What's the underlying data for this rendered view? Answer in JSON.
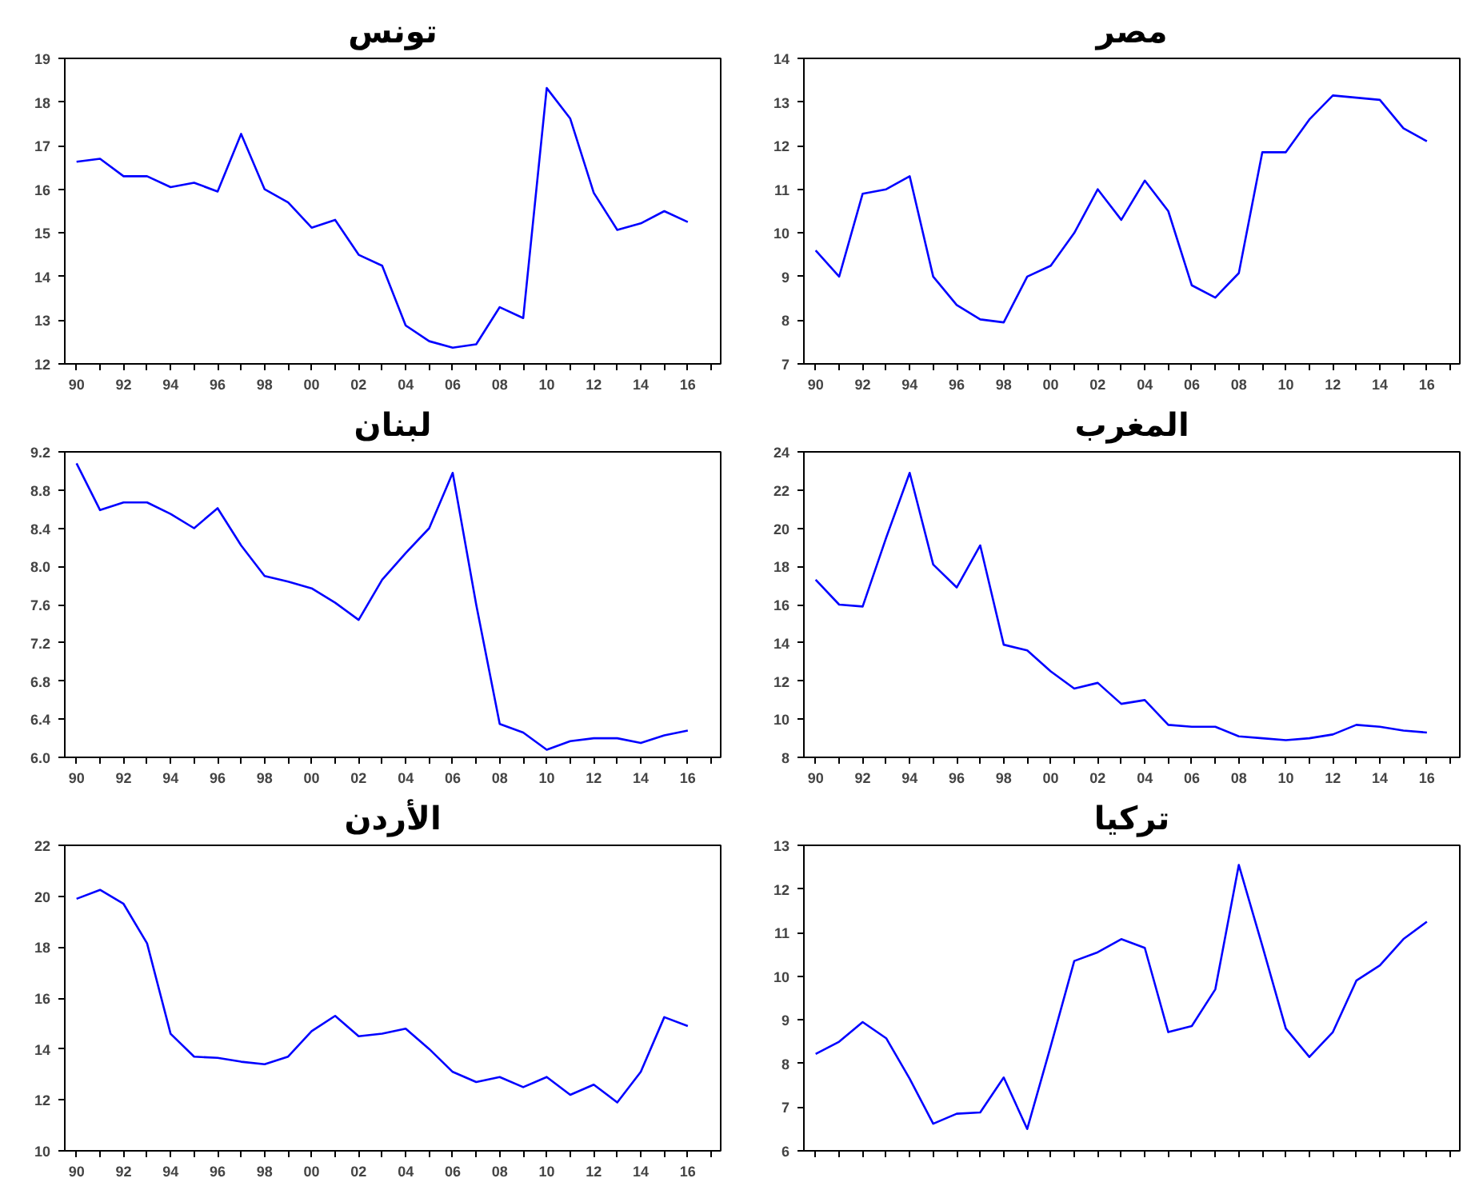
{
  "chart_data": [
    {
      "type": "line",
      "title": "تونس",
      "x": [
        1990,
        1991,
        1992,
        1993,
        1994,
        1995,
        1996,
        1997,
        1998,
        1999,
        2000,
        2001,
        2002,
        2003,
        2004,
        2005,
        2006,
        2007,
        2008,
        2009,
        2010,
        2011,
        2012,
        2013,
        2014,
        2015,
        2016
      ],
      "color": "#0000ff",
      "values": [
        16.63,
        16.7,
        16.3,
        16.3,
        16.05,
        16.15,
        15.95,
        17.27,
        16.0,
        15.7,
        15.12,
        15.3,
        14.5,
        14.25,
        12.88,
        12.52,
        12.37,
        12.45,
        13.3,
        13.05,
        18.32,
        17.62,
        15.92,
        15.07,
        15.22,
        15.5,
        15.25
      ],
      "xlim": [
        1989.5,
        2017.4
      ],
      "ylim": [
        12,
        19
      ],
      "yticks": [
        12,
        13,
        14,
        15,
        16,
        17,
        18,
        19
      ],
      "xticks": [
        {
          "value": 1990,
          "label": "90"
        },
        {
          "value": 1991,
          "label": null
        },
        {
          "value": 1992,
          "label": "92"
        },
        {
          "value": 1993,
          "label": null
        },
        {
          "value": 1994,
          "label": "94"
        },
        {
          "value": 1995,
          "label": null
        },
        {
          "value": 1996,
          "label": "96"
        },
        {
          "value": 1997,
          "label": null
        },
        {
          "value": 1998,
          "label": "98"
        },
        {
          "value": 1999,
          "label": null
        },
        {
          "value": 2000,
          "label": "00"
        },
        {
          "value": 2001,
          "label": null
        },
        {
          "value": 2002,
          "label": "02"
        },
        {
          "value": 2003,
          "label": null
        },
        {
          "value": 2004,
          "label": "04"
        },
        {
          "value": 2005,
          "label": null
        },
        {
          "value": 2006,
          "label": "06"
        },
        {
          "value": 2007,
          "label": null
        },
        {
          "value": 2008,
          "label": "08"
        },
        {
          "value": 2009,
          "label": null
        },
        {
          "value": 2010,
          "label": "10"
        },
        {
          "value": 2011,
          "label": null
        },
        {
          "value": 2012,
          "label": "12"
        },
        {
          "value": 2013,
          "label": null
        },
        {
          "value": 2014,
          "label": "14"
        },
        {
          "value": 2015,
          "label": null
        },
        {
          "value": 2016,
          "label": "16"
        },
        {
          "value": 2017,
          "label": null
        }
      ]
    },
    {
      "type": "line",
      "title": "مصر",
      "x": [
        1990,
        1991,
        1992,
        1993,
        1994,
        1995,
        1996,
        1997,
        1998,
        1999,
        2000,
        2001,
        2002,
        2003,
        2004,
        2005,
        2006,
        2007,
        2008,
        2009,
        2010,
        2011,
        2012,
        2013,
        2014,
        2015,
        2016
      ],
      "color": "#0000ff",
      "values": [
        9.6,
        9.0,
        10.9,
        11.0,
        11.3,
        9.0,
        8.35,
        8.02,
        7.95,
        9.0,
        9.25,
        10.0,
        11.0,
        10.3,
        11.2,
        10.5,
        8.8,
        8.52,
        9.08,
        11.85,
        11.85,
        12.6,
        13.15,
        13.1,
        13.05,
        12.4,
        12.1
      ],
      "xlim": [
        1989.5,
        2017.4
      ],
      "ylim": [
        7,
        14
      ],
      "yticks": [
        7,
        8,
        9,
        10,
        11,
        12,
        13,
        14
      ],
      "xticks": [
        {
          "value": 1990,
          "label": "90"
        },
        {
          "value": 1991,
          "label": null
        },
        {
          "value": 1992,
          "label": "92"
        },
        {
          "value": 1993,
          "label": null
        },
        {
          "value": 1994,
          "label": "94"
        },
        {
          "value": 1995,
          "label": null
        },
        {
          "value": 1996,
          "label": "96"
        },
        {
          "value": 1997,
          "label": null
        },
        {
          "value": 1998,
          "label": "98"
        },
        {
          "value": 1999,
          "label": null
        },
        {
          "value": 2000,
          "label": "00"
        },
        {
          "value": 2001,
          "label": null
        },
        {
          "value": 2002,
          "label": "02"
        },
        {
          "value": 2003,
          "label": null
        },
        {
          "value": 2004,
          "label": "04"
        },
        {
          "value": 2005,
          "label": null
        },
        {
          "value": 2006,
          "label": "06"
        },
        {
          "value": 2007,
          "label": null
        },
        {
          "value": 2008,
          "label": "08"
        },
        {
          "value": 2009,
          "label": null
        },
        {
          "value": 2010,
          "label": "10"
        },
        {
          "value": 2011,
          "label": null
        },
        {
          "value": 2012,
          "label": "12"
        },
        {
          "value": 2013,
          "label": null
        },
        {
          "value": 2014,
          "label": "14"
        },
        {
          "value": 2015,
          "label": null
        },
        {
          "value": 2016,
          "label": "16"
        },
        {
          "value": 2017,
          "label": null
        }
      ]
    },
    {
      "type": "line",
      "title": "لبنان",
      "x": [
        1990,
        1991,
        1992,
        1993,
        1994,
        1995,
        1996,
        1997,
        1998,
        1999,
        2000,
        2001,
        2002,
        2003,
        2004,
        2005,
        2006,
        2007,
        2008,
        2009,
        2010,
        2011,
        2012,
        2013,
        2014,
        2015,
        2016
      ],
      "color": "#0000ff",
      "values": [
        9.08,
        8.59,
        8.67,
        8.67,
        8.55,
        8.4,
        8.61,
        8.22,
        7.9,
        7.84,
        7.77,
        7.62,
        7.44,
        7.86,
        8.14,
        8.4,
        8.98,
        7.6,
        6.35,
        6.26,
        6.08,
        6.17,
        6.2,
        6.2,
        6.15,
        6.23,
        6.28
      ],
      "xlim": [
        1989.5,
        2017.4
      ],
      "ylim": [
        6,
        9.2
      ],
      "yticks": [
        {
          "value": 6,
          "label": "6.0"
        },
        6.4,
        6.8,
        7.2,
        7.6,
        {
          "value": 8,
          "label": "8.0"
        },
        8.4,
        8.8,
        9.2
      ],
      "xticks": [
        {
          "value": 1990,
          "label": "90"
        },
        {
          "value": 1991,
          "label": null
        },
        {
          "value": 1992,
          "label": "92"
        },
        {
          "value": 1993,
          "label": null
        },
        {
          "value": 1994,
          "label": "94"
        },
        {
          "value": 1995,
          "label": null
        },
        {
          "value": 1996,
          "label": "96"
        },
        {
          "value": 1997,
          "label": null
        },
        {
          "value": 1998,
          "label": "98"
        },
        {
          "value": 1999,
          "label": null
        },
        {
          "value": 2000,
          "label": "00"
        },
        {
          "value": 2001,
          "label": null
        },
        {
          "value": 2002,
          "label": "02"
        },
        {
          "value": 2003,
          "label": null
        },
        {
          "value": 2004,
          "label": "04"
        },
        {
          "value": 2005,
          "label": null
        },
        {
          "value": 2006,
          "label": "06"
        },
        {
          "value": 2007,
          "label": null
        },
        {
          "value": 2008,
          "label": "08"
        },
        {
          "value": 2009,
          "label": null
        },
        {
          "value": 2010,
          "label": "10"
        },
        {
          "value": 2011,
          "label": null
        },
        {
          "value": 2012,
          "label": "12"
        },
        {
          "value": 2013,
          "label": null
        },
        {
          "value": 2014,
          "label": "14"
        },
        {
          "value": 2015,
          "label": null
        },
        {
          "value": 2016,
          "label": "16"
        },
        {
          "value": 2017,
          "label": null
        }
      ]
    },
    {
      "type": "line",
      "title": "المغرب",
      "x": [
        1990,
        1991,
        1992,
        1993,
        1994,
        1995,
        1996,
        1997,
        1998,
        1999,
        2000,
        2001,
        2002,
        2003,
        2004,
        2005,
        2006,
        2007,
        2008,
        2009,
        2010,
        2011,
        2012,
        2013,
        2014,
        2015,
        2016
      ],
      "color": "#0000ff",
      "values": [
        17.3,
        16.0,
        15.9,
        19.5,
        22.9,
        18.1,
        16.9,
        19.1,
        13.9,
        13.6,
        12.5,
        11.6,
        11.9,
        10.8,
        11.0,
        9.7,
        9.6,
        9.6,
        9.1,
        9.0,
        8.9,
        9.0,
        9.2,
        9.7,
        9.6,
        9.4,
        9.3
      ],
      "xlim": [
        1989.5,
        2017.4
      ],
      "ylim": [
        8,
        24
      ],
      "yticks": [
        8,
        10,
        12,
        14,
        16,
        18,
        20,
        22,
        24
      ],
      "xticks": [
        {
          "value": 1990,
          "label": "90"
        },
        {
          "value": 1991,
          "label": null
        },
        {
          "value": 1992,
          "label": "92"
        },
        {
          "value": 1993,
          "label": null
        },
        {
          "value": 1994,
          "label": "94"
        },
        {
          "value": 1995,
          "label": null
        },
        {
          "value": 1996,
          "label": "96"
        },
        {
          "value": 1997,
          "label": null
        },
        {
          "value": 1998,
          "label": "98"
        },
        {
          "value": 1999,
          "label": null
        },
        {
          "value": 2000,
          "label": "00"
        },
        {
          "value": 2001,
          "label": null
        },
        {
          "value": 2002,
          "label": "02"
        },
        {
          "value": 2003,
          "label": null
        },
        {
          "value": 2004,
          "label": "04"
        },
        {
          "value": 2005,
          "label": null
        },
        {
          "value": 2006,
          "label": "06"
        },
        {
          "value": 2007,
          "label": null
        },
        {
          "value": 2008,
          "label": "08"
        },
        {
          "value": 2009,
          "label": null
        },
        {
          "value": 2010,
          "label": "10"
        },
        {
          "value": 2011,
          "label": null
        },
        {
          "value": 2012,
          "label": "12"
        },
        {
          "value": 2013,
          "label": null
        },
        {
          "value": 2014,
          "label": "14"
        },
        {
          "value": 2015,
          "label": null
        },
        {
          "value": 2016,
          "label": "16"
        },
        {
          "value": 2017,
          "label": null
        }
      ]
    },
    {
      "type": "line",
      "title": "الأردن",
      "x": [
        1990,
        1991,
        1992,
        1993,
        1994,
        1995,
        1996,
        1997,
        1998,
        1999,
        2000,
        2001,
        2002,
        2003,
        2004,
        2005,
        2006,
        2007,
        2008,
        2009,
        2010,
        2011,
        2012,
        2013,
        2014,
        2015,
        2016
      ],
      "color": "#0000ff",
      "values": [
        19.9,
        20.25,
        19.7,
        18.15,
        14.6,
        13.7,
        13.65,
        13.5,
        13.4,
        13.7,
        14.7,
        15.3,
        14.5,
        14.6,
        14.8,
        14.0,
        13.1,
        12.7,
        12.9,
        12.5,
        12.9,
        12.2,
        12.6,
        11.9,
        13.1,
        15.25,
        14.9
      ],
      "xlim": [
        1989.5,
        2017.4
      ],
      "ylim": [
        10,
        22
      ],
      "yticks": [
        10,
        12,
        14,
        16,
        18,
        20,
        22
      ],
      "xticks": [
        {
          "value": 1990,
          "label": "90"
        },
        {
          "value": 1991,
          "label": null
        },
        {
          "value": 1992,
          "label": "92"
        },
        {
          "value": 1993,
          "label": null
        },
        {
          "value": 1994,
          "label": "94"
        },
        {
          "value": 1995,
          "label": null
        },
        {
          "value": 1996,
          "label": "96"
        },
        {
          "value": 1997,
          "label": null
        },
        {
          "value": 1998,
          "label": "98"
        },
        {
          "value": 1999,
          "label": null
        },
        {
          "value": 2000,
          "label": "00"
        },
        {
          "value": 2001,
          "label": null
        },
        {
          "value": 2002,
          "label": "02"
        },
        {
          "value": 2003,
          "label": null
        },
        {
          "value": 2004,
          "label": "04"
        },
        {
          "value": 2005,
          "label": null
        },
        {
          "value": 2006,
          "label": "06"
        },
        {
          "value": 2007,
          "label": null
        },
        {
          "value": 2008,
          "label": "08"
        },
        {
          "value": 2009,
          "label": null
        },
        {
          "value": 2010,
          "label": "10"
        },
        {
          "value": 2011,
          "label": null
        },
        {
          "value": 2012,
          "label": "12"
        },
        {
          "value": 2013,
          "label": null
        },
        {
          "value": 2014,
          "label": "14"
        },
        {
          "value": 2015,
          "label": null
        },
        {
          "value": 2016,
          "label": "16"
        },
        {
          "value": 2017,
          "label": null
        }
      ]
    },
    {
      "type": "line",
      "title": "تركيا",
      "x": [
        1990,
        1991,
        1992,
        1993,
        1994,
        1995,
        1996,
        1997,
        1998,
        1999,
        2000,
        2001,
        2002,
        2003,
        2004,
        2005,
        2006,
        2007,
        2008,
        2009,
        2010,
        2011,
        2012,
        2013,
        2014,
        2015,
        2016
      ],
      "color": "#0000ff",
      "values": [
        8.22,
        8.5,
        8.95,
        8.58,
        7.65,
        6.62,
        6.85,
        6.88,
        7.68,
        6.5,
        8.4,
        10.35,
        10.55,
        10.85,
        10.65,
        8.72,
        8.86,
        9.7,
        12.55,
        10.7,
        8.8,
        8.15,
        8.72,
        9.9,
        10.25,
        10.85,
        11.25
      ],
      "xlim": [
        1989.5,
        2017.4
      ],
      "ylim": [
        6,
        13
      ],
      "yticks": [
        6,
        7,
        8,
        9,
        10,
        11,
        12,
        13
      ],
      "xticks": [
        {
          "value": 1990,
          "label": null
        },
        {
          "value": 1991,
          "label": null
        },
        {
          "value": 1992,
          "label": null
        },
        {
          "value": 1993,
          "label": null
        },
        {
          "value": 1994,
          "label": null
        },
        {
          "value": 1995,
          "label": null
        },
        {
          "value": 1996,
          "label": null
        },
        {
          "value": 1997,
          "label": null
        },
        {
          "value": 1998,
          "label": null
        },
        {
          "value": 1999,
          "label": null
        },
        {
          "value": 2000,
          "label": null
        },
        {
          "value": 2001,
          "label": null
        },
        {
          "value": 2002,
          "label": null
        },
        {
          "value": 2003,
          "label": null
        },
        {
          "value": 2004,
          "label": null
        },
        {
          "value": 2005,
          "label": null
        },
        {
          "value": 2006,
          "label": null
        },
        {
          "value": 2007,
          "label": null
        },
        {
          "value": 2008,
          "label": null
        },
        {
          "value": 2009,
          "label": null
        },
        {
          "value": 2010,
          "label": null
        },
        {
          "value": 2011,
          "label": null
        },
        {
          "value": 2012,
          "label": null
        },
        {
          "value": 2013,
          "label": null
        },
        {
          "value": 2014,
          "label": null
        },
        {
          "value": 2015,
          "label": null
        },
        {
          "value": 2016,
          "label": null
        },
        {
          "value": 2017,
          "label": null
        }
      ],
      "tick_labels": "y"
    }
  ]
}
